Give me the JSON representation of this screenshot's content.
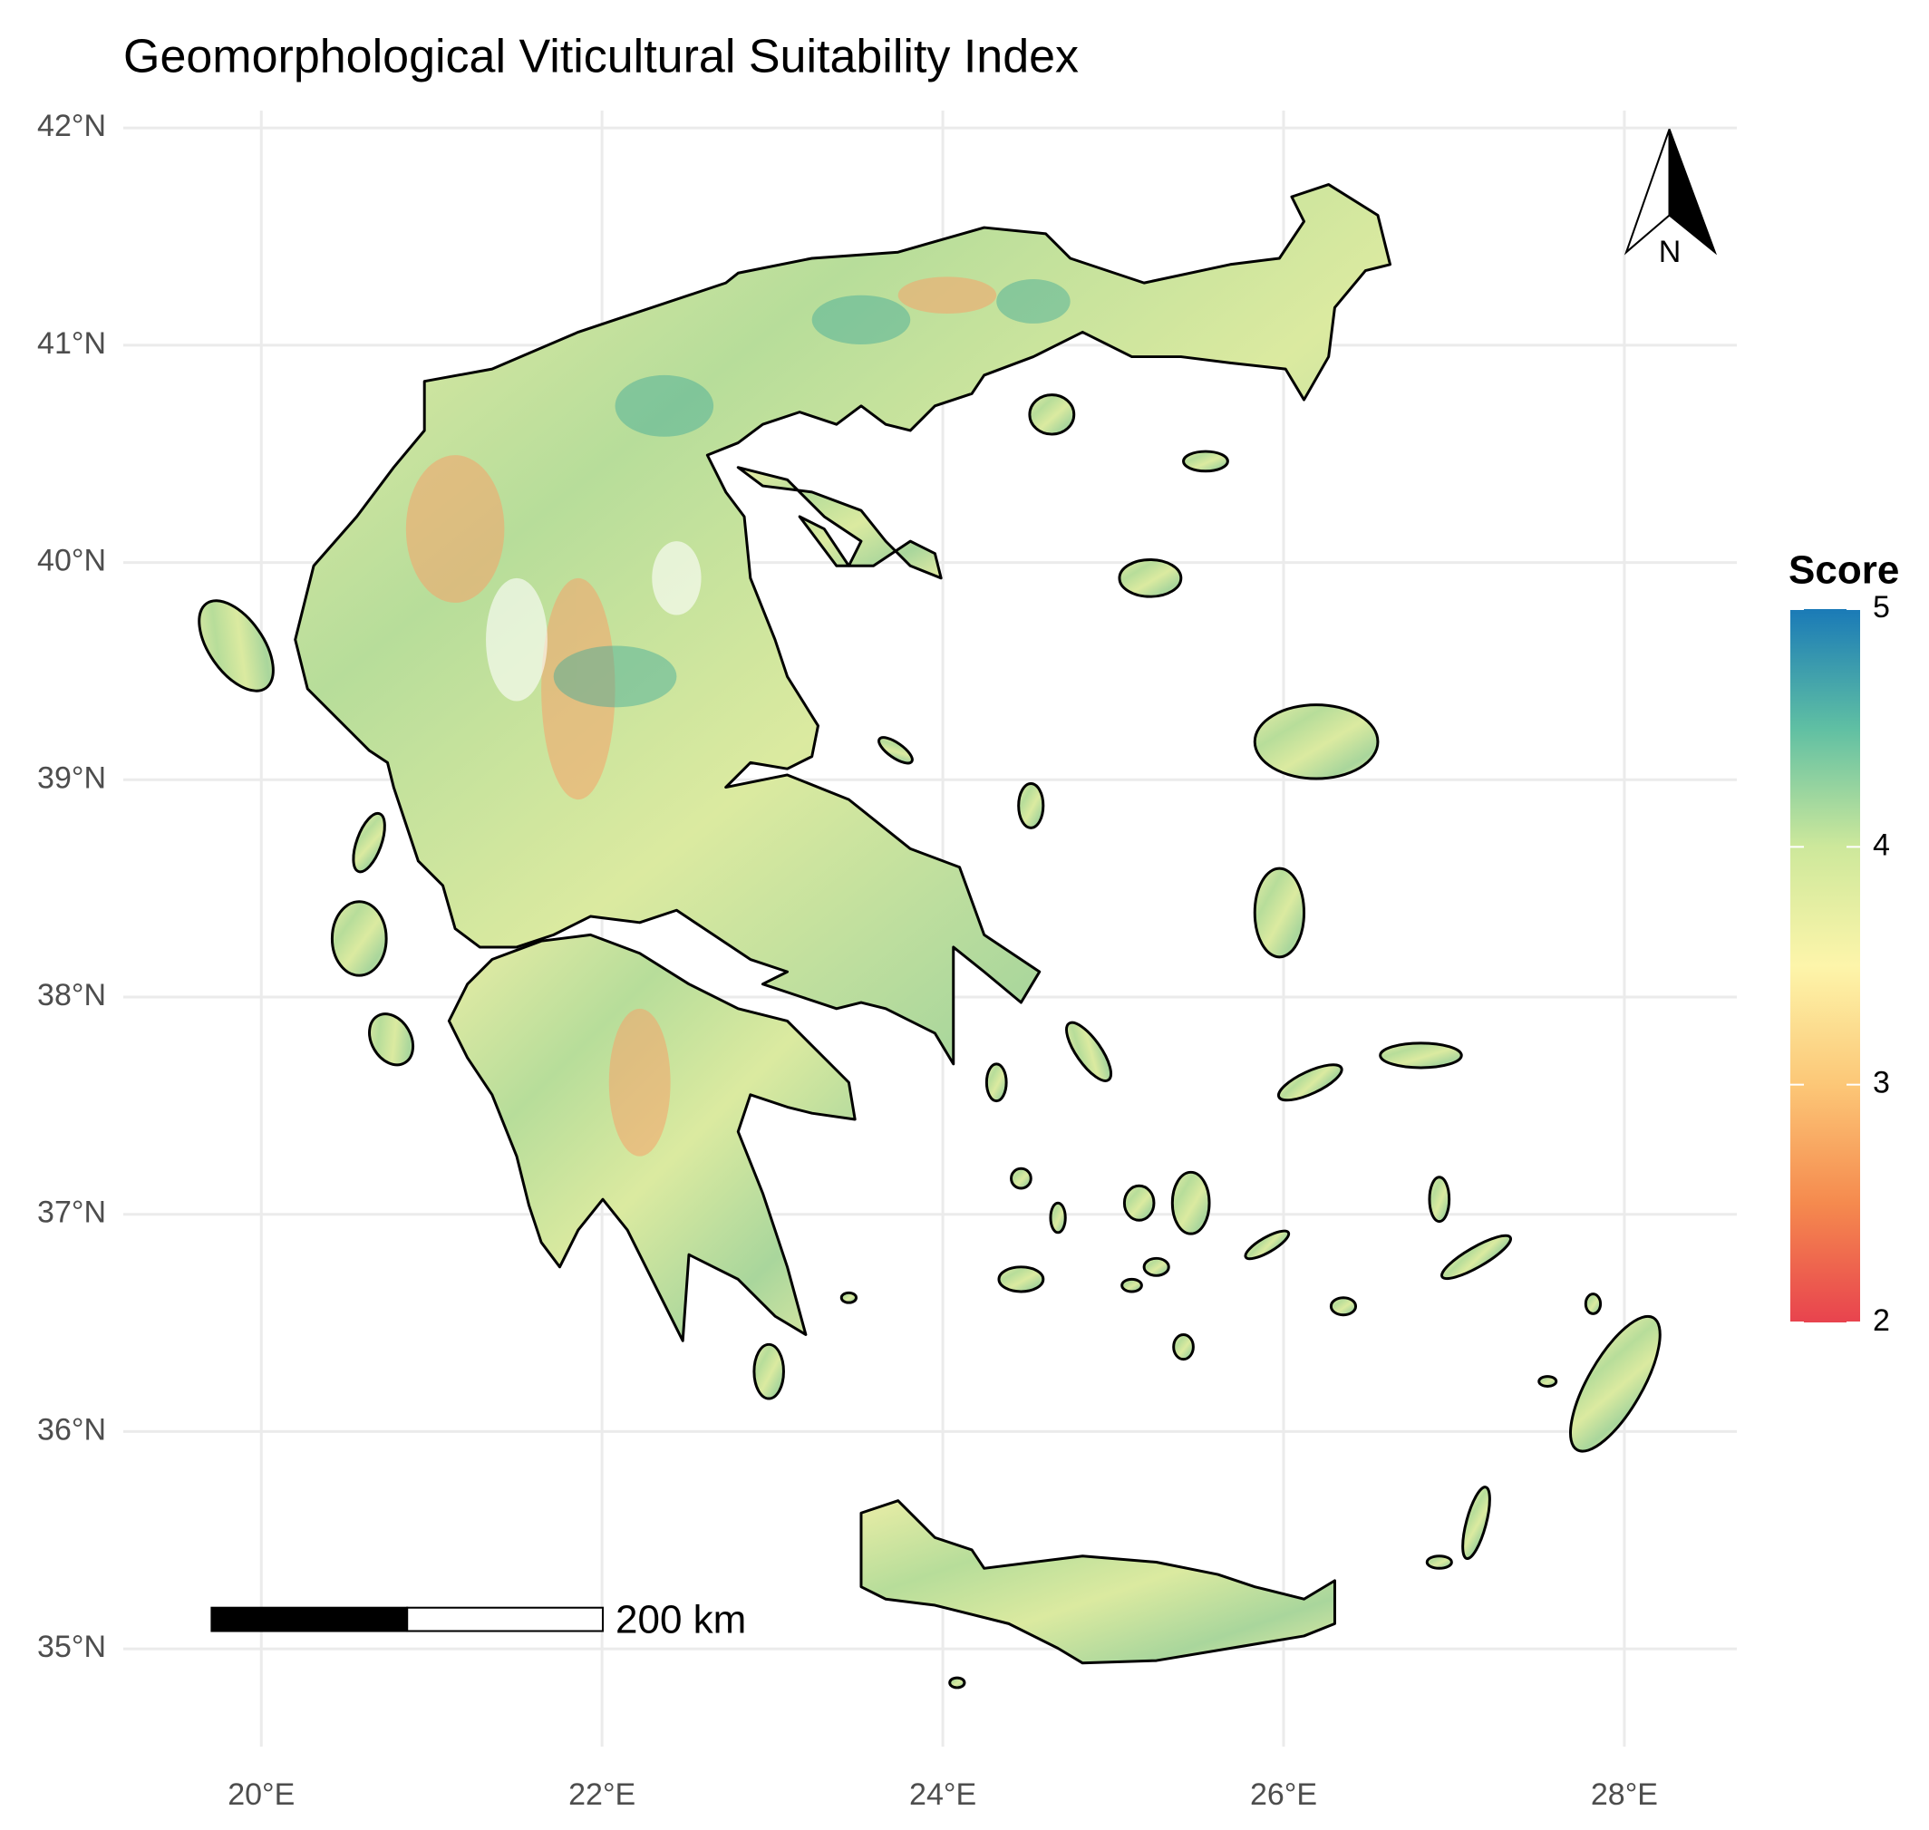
{
  "chart_data": {
    "type": "map",
    "title": "Geomorphological Viticultural Suitability Index",
    "xlim": [
      19.19,
      28.66
    ],
    "ylim": [
      34.55,
      42.08
    ],
    "xticks": [
      {
        "value": 20,
        "label": "20°E"
      },
      {
        "value": 22,
        "label": "22°E"
      },
      {
        "value": 24,
        "label": "24°E"
      },
      {
        "value": 26,
        "label": "26°E"
      },
      {
        "value": 28,
        "label": "28°E"
      }
    ],
    "yticks": [
      {
        "value": 35,
        "label": "35°N"
      },
      {
        "value": 36,
        "label": "36°N"
      },
      {
        "value": 37,
        "label": "37°N"
      },
      {
        "value": 38,
        "label": "38°N"
      },
      {
        "value": 39,
        "label": "39°N"
      },
      {
        "value": 40,
        "label": "40°N"
      },
      {
        "value": 41,
        "label": "41°N"
      },
      {
        "value": 42,
        "label": "42°N"
      }
    ],
    "grid": true,
    "colorbar": {
      "title": "Score",
      "lim": [
        2,
        5
      ],
      "ticks": [
        2,
        3,
        4,
        5
      ],
      "colors": [
        "#e8434e",
        "#f58a4e",
        "#fcc777",
        "#fdf5aa",
        "#cde89b",
        "#5fbfa3",
        "#1a7ab7"
      ]
    },
    "scale_bar": "200 km",
    "north_arrow": "N"
  }
}
